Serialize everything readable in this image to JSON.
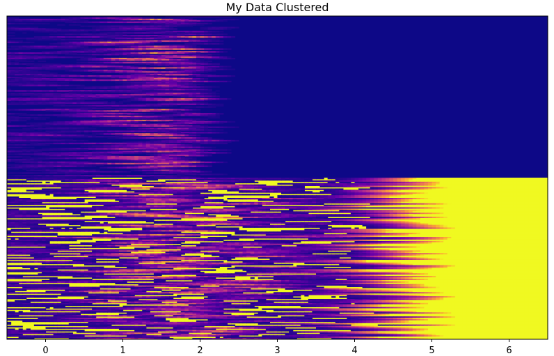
{
  "chart_data": {
    "type": "heatmap",
    "title": "My Data Clustered",
    "xlabel": "",
    "ylabel": "",
    "xlim": [
      -0.5,
      6.5
    ],
    "x_ticks": [
      0,
      1,
      2,
      3,
      4,
      5,
      6
    ],
    "x_tick_labels": [
      "0",
      "1",
      "2",
      "3",
      "4",
      "5",
      "6"
    ],
    "y_ticks": [],
    "grid": false,
    "colormap": "plasma",
    "colormap_stops": [
      "#0d0887",
      "#6a00a8",
      "#b12a90",
      "#e16462",
      "#fca636",
      "#f0f921"
    ],
    "clusters": [
      {
        "rows_fraction": 0.5,
        "tail_value": 0.0,
        "tail_start_x": 2.5
      },
      {
        "rows_fraction": 0.5,
        "tail_value": 1.0,
        "tail_start_x": 4.3
      }
    ]
  }
}
